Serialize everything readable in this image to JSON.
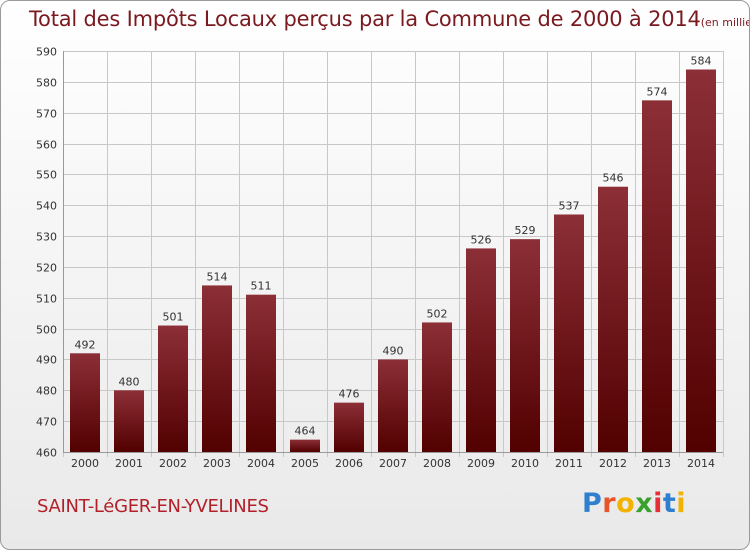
{
  "header": {
    "title": "Total des Impôts Locaux perçus par la Commune de 2000 à 2014",
    "unit": "(en milliers d'€)"
  },
  "footer": {
    "commune": "SAINT-LéGER-EN-YVELINES",
    "brand": "Proxiti",
    "brand_letters": [
      "P",
      "r",
      "o",
      "x",
      "i",
      "t",
      "i"
    ],
    "brand_colors": [
      "#2e7fd0",
      "#e8552a",
      "#f2b200",
      "#3aa12f",
      "#e5303a",
      "#2e7fd0",
      "#f2b200"
    ]
  },
  "colors": {
    "bar_top": "#8c2f37",
    "bar_bottom": "#520000",
    "grid": "#c8c8c8",
    "text": "#333333",
    "title": "#7a1a20"
  },
  "chart_data": {
    "type": "bar",
    "title": "Total des Impôts Locaux perçus par la Commune de 2000 à 2014",
    "xlabel": "",
    "ylabel": "en milliers d'€",
    "ylim": [
      460,
      590
    ],
    "yticks": [
      460,
      470,
      480,
      490,
      500,
      510,
      520,
      530,
      540,
      550,
      560,
      570,
      580,
      590
    ],
    "grid": true,
    "categories": [
      "2000",
      "2001",
      "2002",
      "2003",
      "2004",
      "2005",
      "2006",
      "2007",
      "2008",
      "2009",
      "2010",
      "2011",
      "2012",
      "2013",
      "2014"
    ],
    "values": [
      492,
      480,
      501,
      514,
      511,
      464,
      476,
      490,
      502,
      526,
      529,
      537,
      546,
      574,
      584
    ]
  }
}
